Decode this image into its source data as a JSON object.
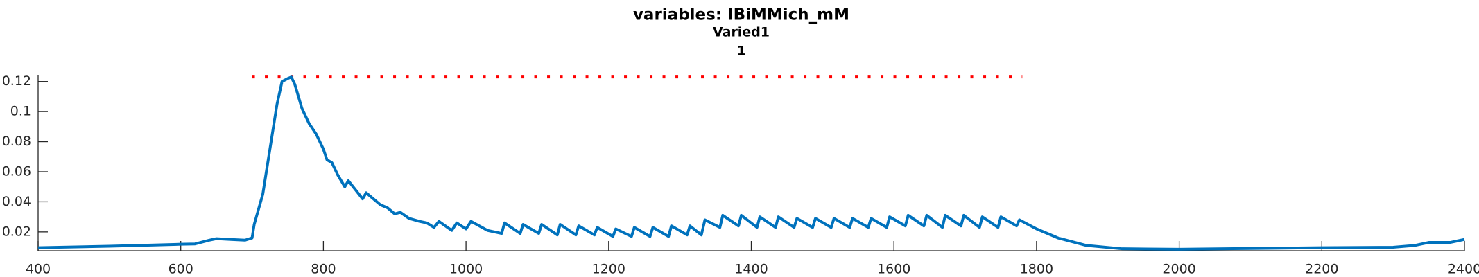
{
  "chart_data": {
    "type": "line",
    "title": [
      "variables: IBiMMich_mM",
      "Varied1",
      "1"
    ],
    "xlim": [
      400,
      2400
    ],
    "xticks": [
      400,
      600,
      800,
      1000,
      1200,
      1400,
      1600,
      1800,
      2000,
      2200,
      2400
    ],
    "ylim": [
      0.0075,
      0.124
    ],
    "yticks": [
      0.02,
      0.04,
      0.06,
      0.08,
      0.1,
      0.12
    ],
    "x": [
      400,
      500,
      600,
      620,
      640,
      650,
      670,
      690,
      700,
      703,
      715,
      725,
      735,
      742,
      750,
      755,
      760,
      770,
      780,
      790,
      800,
      805,
      812,
      820,
      830,
      835,
      845,
      855,
      860,
      870,
      880,
      890,
      900,
      908,
      920,
      935,
      945,
      955,
      962,
      980,
      987,
      1000,
      1007,
      1030,
      1050,
      1054,
      1076,
      1080,
      1102,
      1106,
      1128,
      1132,
      1154,
      1158,
      1180,
      1184,
      1206,
      1210,
      1232,
      1236,
      1258,
      1262,
      1284,
      1288,
      1310,
      1314,
      1330,
      1335,
      1356,
      1360,
      1382,
      1386,
      1408,
      1412,
      1434,
      1438,
      1460,
      1464,
      1486,
      1490,
      1512,
      1516,
      1538,
      1542,
      1564,
      1568,
      1590,
      1594,
      1616,
      1620,
      1642,
      1646,
      1668,
      1672,
      1694,
      1698,
      1720,
      1724,
      1746,
      1750,
      1772,
      1776,
      1800,
      1830,
      1870,
      1920,
      2000,
      2100,
      2200,
      2300,
      2330,
      2350,
      2380,
      2390,
      2400
    ],
    "series": [
      {
        "name": "IBiMMich_mM",
        "color": "#0072bd",
        "values": [
          0.0095,
          0.0105,
          0.0118,
          0.012,
          0.0145,
          0.0155,
          0.015,
          0.0145,
          0.016,
          0.025,
          0.045,
          0.075,
          0.105,
          0.12,
          0.122,
          0.123,
          0.118,
          0.102,
          0.092,
          0.085,
          0.075,
          0.068,
          0.066,
          0.058,
          0.05,
          0.054,
          0.048,
          0.042,
          0.046,
          0.042,
          0.038,
          0.036,
          0.032,
          0.033,
          0.029,
          0.027,
          0.026,
          0.023,
          0.027,
          0.021,
          0.026,
          0.022,
          0.027,
          0.021,
          0.019,
          0.026,
          0.019,
          0.025,
          0.019,
          0.025,
          0.018,
          0.025,
          0.018,
          0.024,
          0.018,
          0.023,
          0.017,
          0.022,
          0.017,
          0.023,
          0.017,
          0.023,
          0.017,
          0.024,
          0.018,
          0.024,
          0.018,
          0.028,
          0.023,
          0.031,
          0.024,
          0.031,
          0.023,
          0.03,
          0.023,
          0.03,
          0.023,
          0.029,
          0.023,
          0.029,
          0.023,
          0.029,
          0.023,
          0.029,
          0.023,
          0.029,
          0.023,
          0.03,
          0.024,
          0.031,
          0.024,
          0.031,
          0.023,
          0.031,
          0.024,
          0.031,
          0.023,
          0.03,
          0.023,
          0.03,
          0.024,
          0.028,
          0.022,
          0.016,
          0.011,
          0.0088,
          0.0085,
          0.009,
          0.0095,
          0.0098,
          0.011,
          0.013,
          0.013,
          0.014,
          0.015
        ]
      }
    ],
    "reference": {
      "y": 0.123,
      "x": [
        700,
        1780
      ],
      "color": "#ff0000"
    }
  }
}
